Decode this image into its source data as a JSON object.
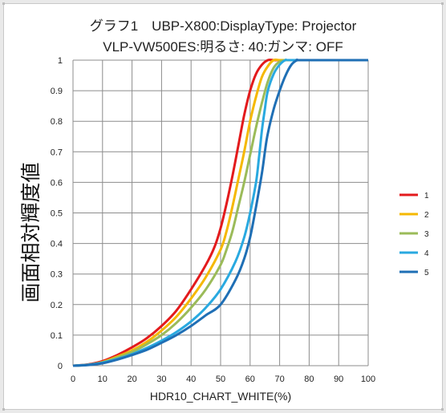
{
  "chart_data": {
    "type": "line",
    "title_line1": "グラフ1　UBP-X800:DisplayType: Projector",
    "title_line2": "VLP-VW500ES:明るさ: 40:ガンマ: OFF",
    "xlabel": "HDR10_CHART_WHITE(%)",
    "ylabel": "画面相対輝度値",
    "xlim": [
      0,
      100
    ],
    "ylim": [
      0,
      1
    ],
    "x_ticks": [
      "0",
      "10",
      "20",
      "30",
      "40",
      "50",
      "60",
      "70",
      "80",
      "90",
      "100"
    ],
    "y_ticks": [
      "0",
      "0.1",
      "0.2",
      "0.3",
      "0.4",
      "0.5",
      "0.6",
      "0.7",
      "0.8",
      "0.9",
      "1"
    ],
    "grid": true,
    "legend_position": "right",
    "series": [
      {
        "name": "1",
        "color": "#e31a1c",
        "x": [
          0,
          5,
          10,
          15,
          20,
          25,
          30,
          35,
          40,
          45,
          48,
          50,
          52,
          54,
          56,
          58,
          60,
          62,
          64,
          66,
          68,
          70,
          75,
          100
        ],
        "y": [
          0,
          0.004,
          0.015,
          0.035,
          0.06,
          0.09,
          0.13,
          0.18,
          0.25,
          0.33,
          0.39,
          0.45,
          0.53,
          0.62,
          0.72,
          0.82,
          0.9,
          0.955,
          0.985,
          1,
          1,
          1,
          1,
          1
        ]
      },
      {
        "name": "2",
        "color": "#f5b800",
        "x": [
          0,
          5,
          10,
          15,
          20,
          25,
          30,
          35,
          40,
          45,
          50,
          52,
          54,
          56,
          58,
          60,
          62,
          64,
          66,
          68,
          70,
          75,
          100
        ],
        "y": [
          0,
          0.003,
          0.012,
          0.03,
          0.05,
          0.078,
          0.115,
          0.16,
          0.22,
          0.29,
          0.38,
          0.44,
          0.52,
          0.61,
          0.7,
          0.8,
          0.88,
          0.945,
          0.98,
          1,
          1,
          1,
          1
        ]
      },
      {
        "name": "3",
        "color": "#9bbb59",
        "x": [
          0,
          5,
          10,
          15,
          20,
          25,
          30,
          35,
          40,
          45,
          50,
          52,
          54,
          56,
          58,
          60,
          62,
          64,
          66,
          68,
          70,
          72,
          75,
          100
        ],
        "y": [
          0,
          0.003,
          0.011,
          0.027,
          0.045,
          0.07,
          0.1,
          0.14,
          0.19,
          0.25,
          0.33,
          0.38,
          0.44,
          0.52,
          0.6,
          0.69,
          0.78,
          0.86,
          0.93,
          0.975,
          0.995,
          1,
          1,
          1
        ]
      },
      {
        "name": "4",
        "color": "#29a9e0",
        "x": [
          0,
          5,
          10,
          15,
          20,
          25,
          30,
          35,
          40,
          45,
          50,
          55,
          58,
          60,
          62,
          63,
          64,
          65,
          66,
          68,
          70,
          72,
          75,
          100
        ],
        "y": [
          0,
          0.003,
          0.01,
          0.022,
          0.038,
          0.058,
          0.082,
          0.11,
          0.145,
          0.19,
          0.25,
          0.34,
          0.42,
          0.5,
          0.6,
          0.68,
          0.77,
          0.84,
          0.9,
          0.955,
          0.985,
          1,
          1,
          1
        ]
      },
      {
        "name": "5",
        "color": "#1f6fb5",
        "x": [
          0,
          5,
          10,
          15,
          20,
          25,
          30,
          35,
          40,
          45,
          50,
          55,
          58,
          60,
          62,
          64,
          65,
          66,
          68,
          70,
          72,
          74,
          76,
          78,
          100
        ],
        "y": [
          0,
          0.002,
          0.008,
          0.02,
          0.035,
          0.052,
          0.075,
          0.1,
          0.13,
          0.165,
          0.2,
          0.28,
          0.35,
          0.42,
          0.52,
          0.63,
          0.7,
          0.76,
          0.84,
          0.9,
          0.95,
          0.985,
          1,
          1,
          1
        ]
      }
    ]
  }
}
